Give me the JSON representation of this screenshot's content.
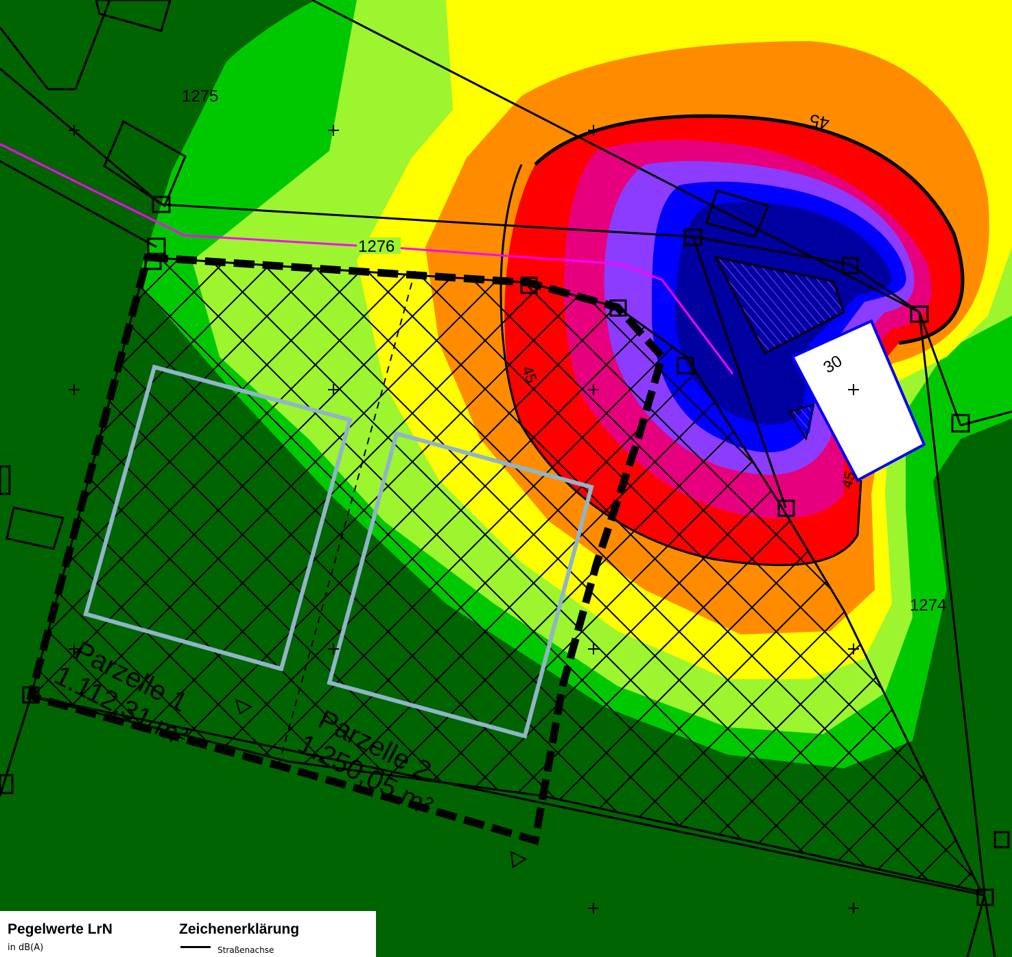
{
  "map": {
    "parcel_numbers": [
      "1275",
      "1276",
      "1274"
    ],
    "contour_label": "45",
    "building_value": "30",
    "parcels": [
      {
        "name": "Parzelle 1",
        "area": "1.112,31 m²"
      },
      {
        "name": "Parzelle 2",
        "area": "1.250,05 m²"
      }
    ],
    "colors": {
      "background": "#006400",
      "zone_green": "#00c800",
      "zone_lightgreen": "#9cf52f",
      "zone_yellow": "#ffff00",
      "zone_orange": "#ff8c00",
      "zone_red": "#ff0000",
      "zone_crimson": "#e6007e",
      "zone_purple": "#8c3cff",
      "zone_blue": "#0000ff",
      "zone_darkblue": "#0000a0",
      "road_line": "#ff00ff",
      "building_outline": "#90b4c8"
    }
  },
  "legend": {
    "levels_title": "Pegelwerte LrN",
    "levels_unit": "in dB(A)",
    "key_title": "Zeichenerklärung",
    "road_axis_label": "Straßenachse"
  }
}
